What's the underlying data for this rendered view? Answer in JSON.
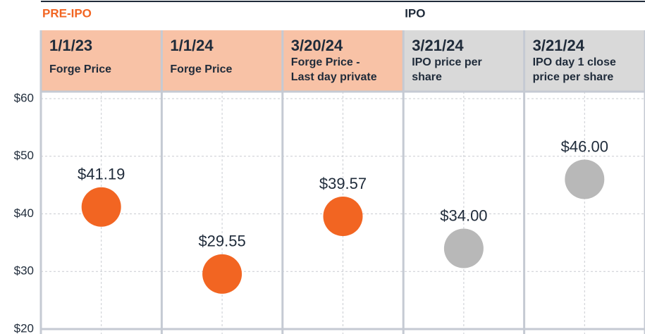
{
  "chart_data": {
    "type": "dot",
    "groups": [
      {
        "name": "PRE-IPO",
        "start": 0,
        "color": "#f26522"
      },
      {
        "name": "IPO",
        "start": 3,
        "color": "#1f2b3a"
      }
    ],
    "categories": [
      "1/1/23",
      "1/1/24",
      "3/20/24",
      "3/21/24",
      "3/21/24"
    ],
    "category_subtitles": [
      [
        "Forge Price"
      ],
      [
        "Forge Price"
      ],
      [
        "Forge Price -",
        "Last day private"
      ],
      [
        "IPO price per",
        "share"
      ],
      [
        "IPO day 1 close",
        "price per share"
      ]
    ],
    "header_colors": [
      "#f8c2a6",
      "#f8c2a6",
      "#f8c2a6",
      "#d9d9d9",
      "#d9d9d9"
    ],
    "values": [
      41.19,
      29.55,
      39.57,
      34.0,
      46.0
    ],
    "value_labels": [
      "$41.19",
      "$29.55",
      "$39.57",
      "$34.00",
      "$46.00"
    ],
    "colors": [
      "#f26522",
      "#f26522",
      "#f26522",
      "#b8b8b8",
      "#b8b8b8"
    ],
    "ylim": [
      20,
      60
    ],
    "yticks": [
      {
        "value": 20,
        "label": "$20"
      },
      {
        "value": 30,
        "label": "$30"
      },
      {
        "value": 40,
        "label": "$40"
      },
      {
        "value": 50,
        "label": "$50"
      },
      {
        "value": 60,
        "label": "$60"
      }
    ],
    "grid": true
  }
}
